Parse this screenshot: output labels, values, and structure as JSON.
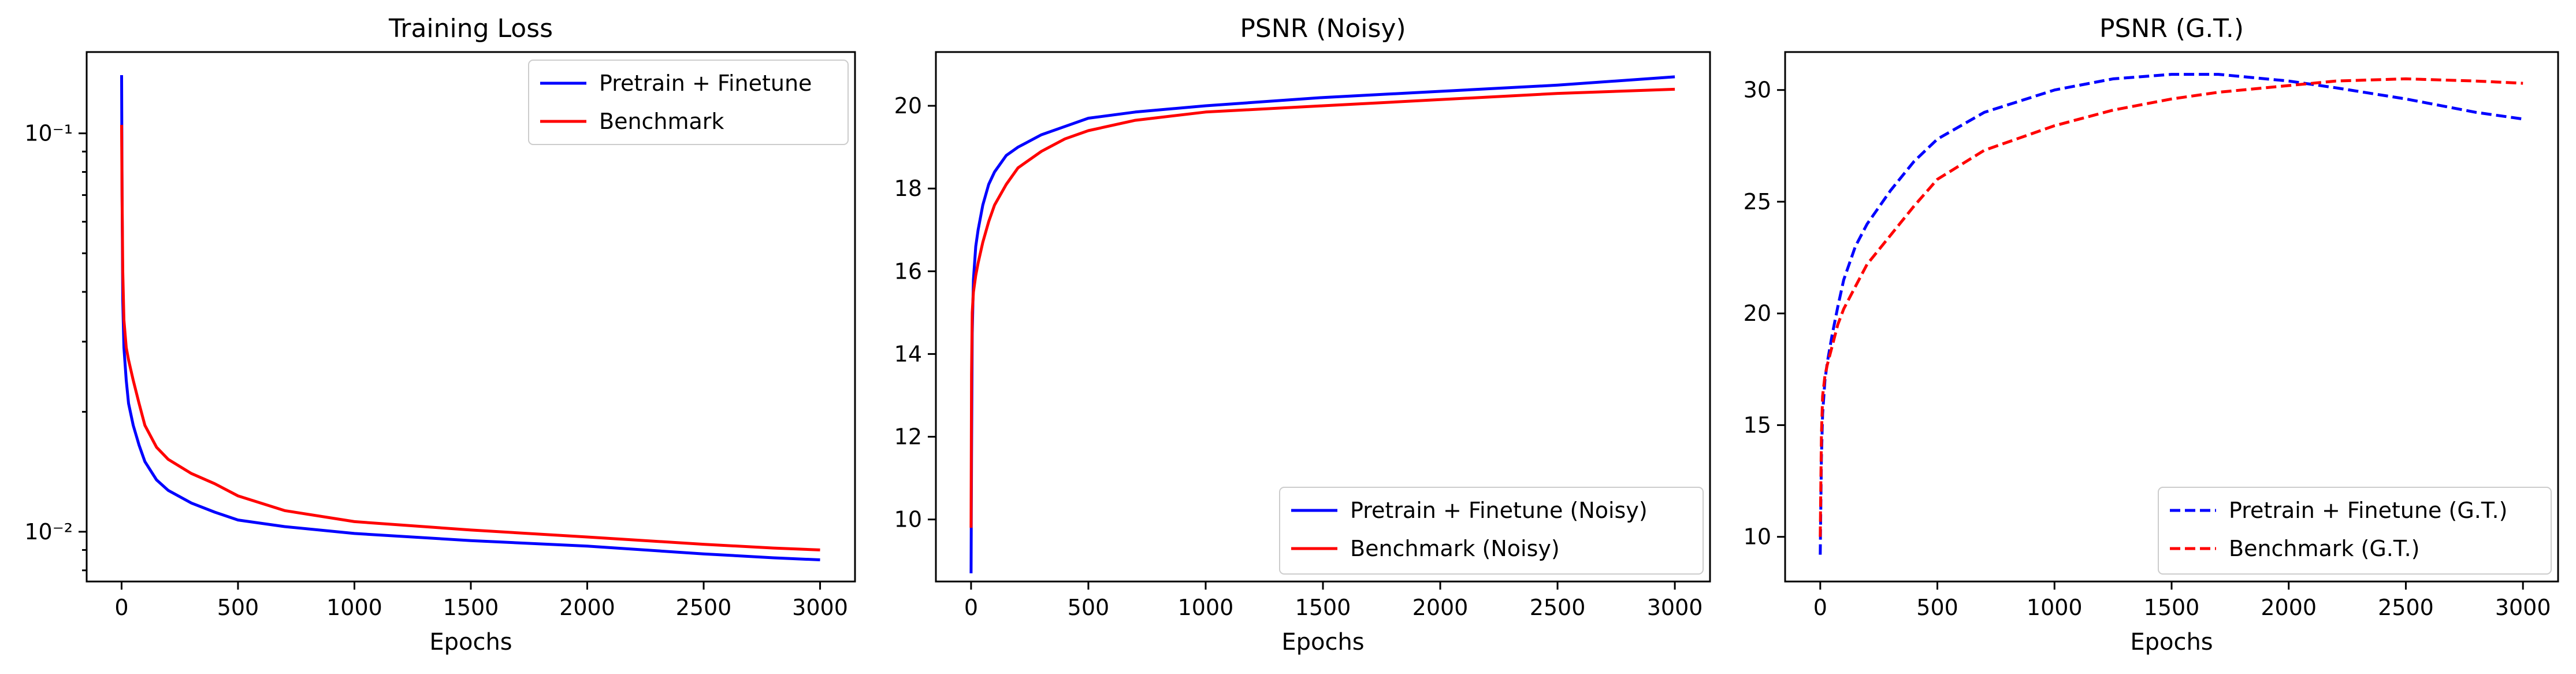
{
  "chart_data": [
    {
      "type": "line",
      "title": "Training Loss",
      "xlabel": "Epochs",
      "ylabel": "",
      "xlim": [
        -150,
        3150
      ],
      "ylim": [
        0.0075,
        0.16
      ],
      "yscale": "log",
      "xticks": [
        0,
        500,
        1000,
        1500,
        2000,
        2500,
        3000
      ],
      "xtick_labels": [
        "0",
        "500",
        "1000",
        "1500",
        "2000",
        "2500",
        "3000"
      ],
      "yticks": [
        0.01,
        0.1
      ],
      "ytick_labels": [
        "10⁻²",
        "10⁻¹"
      ],
      "legend_position": "upper right",
      "grid": false,
      "series": [
        {
          "name": "Pretrain + Finetune",
          "color": "#0000ff",
          "dash": "solid",
          "x": [
            0,
            2,
            5,
            10,
            20,
            30,
            50,
            75,
            100,
            150,
            200,
            300,
            400,
            500,
            700,
            1000,
            1500,
            2000,
            2500,
            2800,
            3000
          ],
          "y": [
            0.14,
            0.07,
            0.038,
            0.029,
            0.024,
            0.021,
            0.0185,
            0.0165,
            0.015,
            0.0135,
            0.0127,
            0.0118,
            0.0112,
            0.0107,
            0.0103,
            0.0099,
            0.0095,
            0.0092,
            0.0088,
            0.0086,
            0.0085
          ]
        },
        {
          "name": "Benchmark",
          "color": "#ff0000",
          "dash": "solid",
          "x": [
            0,
            2,
            5,
            10,
            20,
            30,
            50,
            75,
            100,
            150,
            200,
            300,
            400,
            500,
            700,
            1000,
            1500,
            2000,
            2500,
            2800,
            3000
          ],
          "y": [
            0.105,
            0.07,
            0.045,
            0.034,
            0.029,
            0.027,
            0.024,
            0.021,
            0.0185,
            0.0163,
            0.0152,
            0.014,
            0.0132,
            0.0123,
            0.0113,
            0.0106,
            0.0101,
            0.0097,
            0.0093,
            0.0091,
            0.009
          ]
        }
      ]
    },
    {
      "type": "line",
      "title": "PSNR (Noisy)",
      "xlabel": "Epochs",
      "ylabel": "",
      "xlim": [
        -150,
        3150
      ],
      "ylim": [
        8.5,
        21.3
      ],
      "yscale": "linear",
      "xticks": [
        0,
        500,
        1000,
        1500,
        2000,
        2500,
        3000
      ],
      "xtick_labels": [
        "0",
        "500",
        "1000",
        "1500",
        "2000",
        "2500",
        "3000"
      ],
      "yticks": [
        10,
        12,
        14,
        16,
        18,
        20
      ],
      "ytick_labels": [
        "10",
        "12",
        "14",
        "16",
        "18",
        "20"
      ],
      "legend_position": "lower right",
      "grid": false,
      "series": [
        {
          "name": "Pretrain + Finetune (Noisy)",
          "color": "#0000ff",
          "dash": "solid",
          "x": [
            0,
            2,
            5,
            10,
            20,
            30,
            50,
            75,
            100,
            150,
            200,
            300,
            400,
            500,
            700,
            1000,
            1500,
            2000,
            2500,
            3000
          ],
          "y": [
            8.7,
            11.5,
            14.5,
            15.8,
            16.6,
            17.0,
            17.6,
            18.1,
            18.4,
            18.8,
            19.0,
            19.3,
            19.5,
            19.7,
            19.85,
            20.0,
            20.2,
            20.35,
            20.5,
            20.7
          ]
        },
        {
          "name": "Benchmark (Noisy)",
          "color": "#ff0000",
          "dash": "solid",
          "x": [
            0,
            2,
            5,
            10,
            20,
            30,
            50,
            75,
            100,
            150,
            200,
            300,
            400,
            500,
            700,
            1000,
            1500,
            2000,
            2500,
            3000
          ],
          "y": [
            9.8,
            13.5,
            15.0,
            15.5,
            15.9,
            16.2,
            16.7,
            17.2,
            17.6,
            18.1,
            18.5,
            18.9,
            19.2,
            19.4,
            19.65,
            19.85,
            20.0,
            20.15,
            20.3,
            20.4
          ]
        }
      ]
    },
    {
      "type": "line",
      "title": "PSNR (G.T.)",
      "xlabel": "Epochs",
      "ylabel": "",
      "xlim": [
        -150,
        3150
      ],
      "ylim": [
        8.0,
        31.7
      ],
      "yscale": "linear",
      "xticks": [
        0,
        500,
        1000,
        1500,
        2000,
        2500,
        3000
      ],
      "xtick_labels": [
        "0",
        "500",
        "1000",
        "1500",
        "2000",
        "2500",
        "3000"
      ],
      "yticks": [
        10,
        15,
        20,
        25,
        30
      ],
      "ytick_labels": [
        "10",
        "15",
        "20",
        "25",
        "30"
      ],
      "legend_position": "lower right",
      "grid": false,
      "series": [
        {
          "name": "Pretrain + Finetune (G.T.)",
          "color": "#0000ff",
          "dash": "dashed",
          "x": [
            0,
            5,
            10,
            20,
            30,
            50,
            75,
            100,
            150,
            200,
            300,
            400,
            500,
            700,
            1000,
            1250,
            1500,
            1700,
            2000,
            2200,
            2500,
            2800,
            3000
          ],
          "y": [
            9.2,
            13.5,
            15.5,
            17.0,
            17.8,
            19.0,
            20.3,
            21.5,
            23.0,
            24.0,
            25.5,
            26.8,
            27.8,
            29.0,
            30.0,
            30.5,
            30.7,
            30.7,
            30.4,
            30.1,
            29.6,
            29.0,
            28.7
          ]
        },
        {
          "name": "Benchmark (G.T.)",
          "color": "#ff0000",
          "dash": "dashed",
          "x": [
            0,
            5,
            10,
            20,
            30,
            50,
            75,
            100,
            150,
            200,
            300,
            400,
            500,
            700,
            1000,
            1250,
            1500,
            1700,
            2000,
            2200,
            2500,
            2800,
            3000
          ],
          "y": [
            10.0,
            14.5,
            16.3,
            17.2,
            17.7,
            18.5,
            19.5,
            20.2,
            21.2,
            22.2,
            23.5,
            24.8,
            26.0,
            27.3,
            28.4,
            29.1,
            29.6,
            29.9,
            30.2,
            30.4,
            30.5,
            30.4,
            30.3
          ]
        }
      ]
    }
  ]
}
